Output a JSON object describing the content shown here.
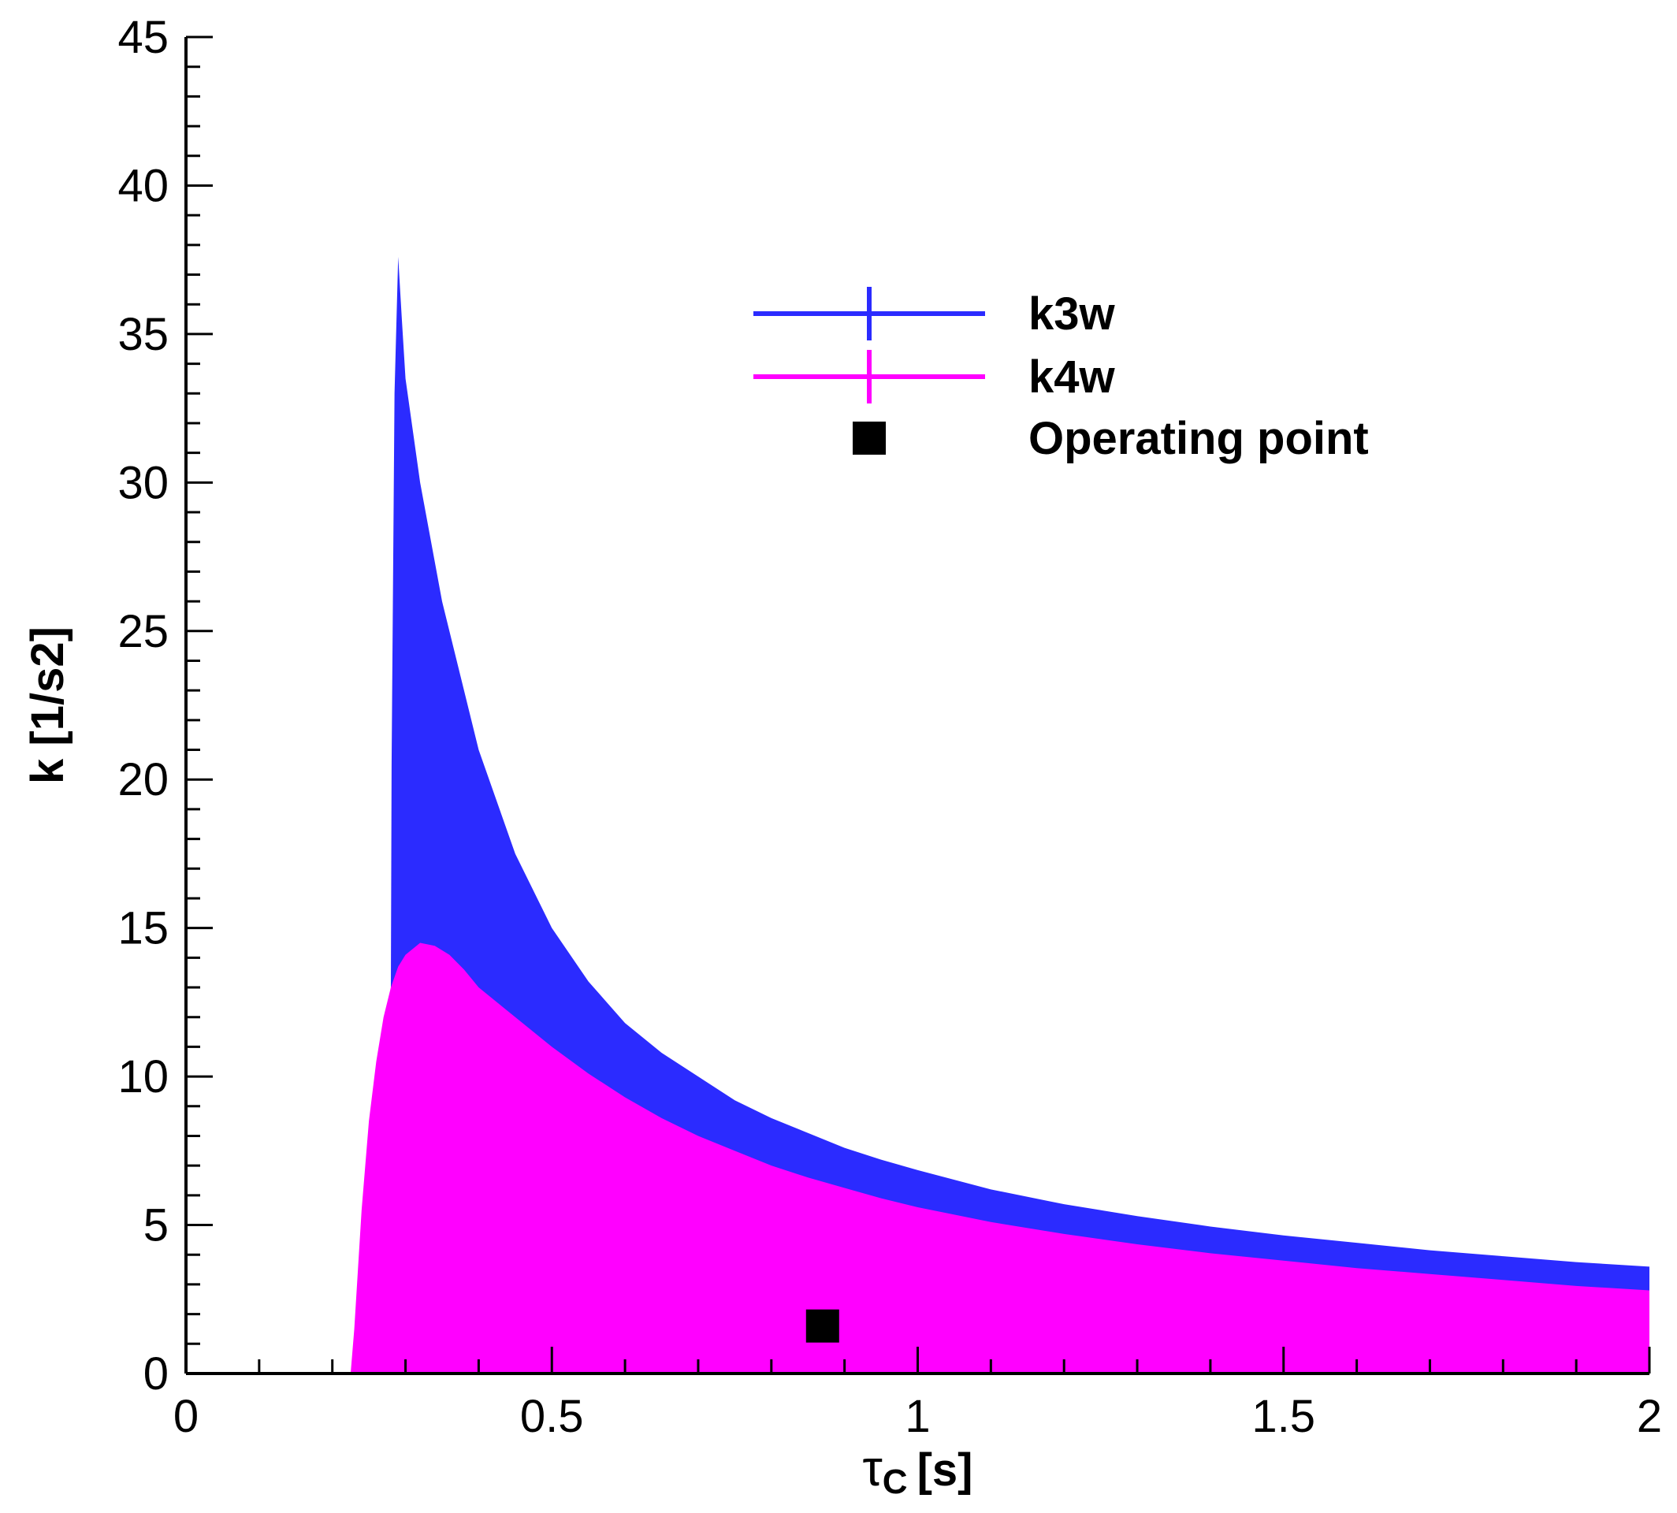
{
  "chart_data": {
    "type": "area",
    "title": "",
    "xlabel": {
      "symbol": "τ",
      "subscript": "C",
      "unit": "[s]"
    },
    "ylabel": "k [1/s2]",
    "xlim": [
      0,
      2
    ],
    "ylim": [
      0,
      45
    ],
    "x_major_ticks": [
      0,
      0.5,
      1,
      1.5,
      2
    ],
    "x_tick_labels": [
      "0",
      "0.5",
      "1",
      "1.5",
      "2"
    ],
    "y_major_ticks": [
      0,
      5,
      10,
      15,
      20,
      25,
      30,
      35,
      40,
      45
    ],
    "y_tick_labels": [
      "0",
      "5",
      "10",
      "15",
      "20",
      "25",
      "30",
      "35",
      "40",
      "45"
    ],
    "grid": false,
    "legend_position": "top-center",
    "series": [
      {
        "name": "k3w",
        "color": "#2b2bff",
        "x": [
          0.28,
          0.281,
          0.285,
          0.29,
          0.295,
          0.3,
          0.32,
          0.35,
          0.4,
          0.45,
          0.5,
          0.55,
          0.6,
          0.65,
          0.7,
          0.75,
          0.8,
          0.85,
          0.9,
          0.95,
          1.0,
          1.1,
          1.2,
          1.3,
          1.4,
          1.5,
          1.6,
          1.7,
          1.8,
          1.9,
          2.0
        ],
        "values": [
          13.0,
          20.5,
          33.0,
          37.6,
          35.5,
          33.5,
          30.0,
          26.0,
          21.0,
          17.5,
          15.0,
          13.2,
          11.8,
          10.8,
          10.0,
          9.2,
          8.6,
          8.1,
          7.6,
          7.2,
          6.85,
          6.2,
          5.7,
          5.3,
          4.95,
          4.65,
          4.4,
          4.15,
          3.95,
          3.75,
          3.6
        ]
      },
      {
        "name": "k4w",
        "color": "#ff00ff",
        "x": [
          0.225,
          0.23,
          0.235,
          0.24,
          0.25,
          0.26,
          0.27,
          0.28,
          0.29,
          0.3,
          0.32,
          0.34,
          0.36,
          0.38,
          0.4,
          0.45,
          0.5,
          0.55,
          0.6,
          0.65,
          0.7,
          0.75,
          0.8,
          0.85,
          0.9,
          0.95,
          1.0,
          1.1,
          1.2,
          1.3,
          1.4,
          1.5,
          1.6,
          1.7,
          1.8,
          1.9,
          2.0
        ],
        "values": [
          0.0,
          1.5,
          3.5,
          5.5,
          8.5,
          10.5,
          12.0,
          13.0,
          13.7,
          14.1,
          14.5,
          14.4,
          14.1,
          13.6,
          13.0,
          12.0,
          11.0,
          10.1,
          9.3,
          8.6,
          8.0,
          7.5,
          7.0,
          6.6,
          6.25,
          5.9,
          5.6,
          5.1,
          4.7,
          4.35,
          4.05,
          3.8,
          3.55,
          3.35,
          3.15,
          2.95,
          2.8
        ]
      },
      {
        "name": "Operating point",
        "type": "scatter",
        "marker": "square",
        "color": "#000000",
        "x": [
          0.87
        ],
        "values": [
          1.6
        ]
      }
    ]
  }
}
